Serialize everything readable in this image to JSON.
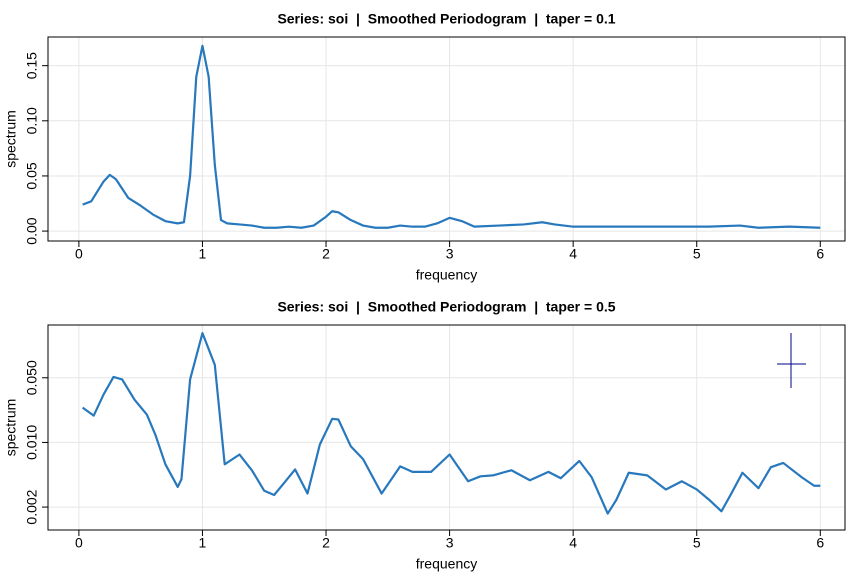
{
  "chart_data": [
    {
      "type": "line",
      "title": "Series: soi  |  Smoothed Periodogram  |  taper = 0.1",
      "x_label": "frequency",
      "y_label": "spectrum",
      "log_y": false,
      "grid": true,
      "color": "#2878bd",
      "xlim": [
        -0.25,
        6.2
      ],
      "ylim": [
        -0.009,
        0.176
      ],
      "xticks": [
        0,
        1,
        2,
        3,
        4,
        5,
        6
      ],
      "yticks": [
        {
          "value": 0,
          "label": "0.00"
        },
        {
          "value": 0.05,
          "label": "0.05"
        },
        {
          "value": 0.1,
          "label": "0.10"
        },
        {
          "value": 0.15,
          "label": "0.15"
        }
      ],
      "x": [
        0.03,
        0.1,
        0.2,
        0.25,
        0.3,
        0.4,
        0.5,
        0.6,
        0.7,
        0.8,
        0.85,
        0.9,
        0.95,
        1.0,
        1.05,
        1.1,
        1.15,
        1.2,
        1.3,
        1.4,
        1.5,
        1.6,
        1.7,
        1.8,
        1.9,
        2.0,
        2.05,
        2.1,
        2.2,
        2.3,
        2.4,
        2.5,
        2.6,
        2.7,
        2.8,
        2.9,
        3.0,
        3.1,
        3.2,
        3.4,
        3.6,
        3.75,
        3.85,
        4.0,
        4.3,
        4.6,
        4.9,
        5.1,
        5.35,
        5.5,
        5.75,
        6.0
      ],
      "series": [
        {
          "values": [
            0.024,
            0.027,
            0.045,
            0.051,
            0.047,
            0.03,
            0.023,
            0.015,
            0.009,
            0.007,
            0.008,
            0.05,
            0.14,
            0.168,
            0.14,
            0.06,
            0.01,
            0.007,
            0.006,
            0.005,
            0.003,
            0.003,
            0.004,
            0.003,
            0.005,
            0.013,
            0.018,
            0.017,
            0.01,
            0.005,
            0.003,
            0.003,
            0.005,
            0.004,
            0.004,
            0.007,
            0.012,
            0.009,
            0.004,
            0.005,
            0.006,
            0.008,
            0.006,
            0.004,
            0.004,
            0.004,
            0.004,
            0.004,
            0.005,
            0.003,
            0.004,
            0.003
          ]
        }
      ]
    },
    {
      "type": "line",
      "title": "Series: soi  |  Smoothed Periodogram  |  taper = 0.5",
      "x_label": "frequency",
      "y_label": "spectrum",
      "log_y": true,
      "grid": true,
      "color": "#2878bd",
      "xlim": [
        -0.25,
        6.2
      ],
      "ylim": [
        0.00113,
        0.186
      ],
      "xticks": [
        0,
        1,
        2,
        3,
        4,
        5,
        6
      ],
      "yticks": [
        {
          "value": 0.002,
          "label": "0.002"
        },
        {
          "value": 0.01,
          "label": "0.010"
        },
        {
          "value": 0.05,
          "label": "0.050"
        }
      ],
      "x": [
        0.03,
        0.12,
        0.2,
        0.28,
        0.35,
        0.45,
        0.55,
        0.62,
        0.7,
        0.8,
        0.83,
        0.9,
        1.0,
        1.1,
        1.18,
        1.3,
        1.4,
        1.5,
        1.58,
        1.65,
        1.75,
        1.85,
        1.95,
        2.05,
        2.1,
        2.2,
        2.3,
        2.45,
        2.6,
        2.7,
        2.85,
        3.0,
        3.15,
        3.25,
        3.35,
        3.5,
        3.65,
        3.8,
        3.9,
        4.05,
        4.15,
        4.28,
        4.35,
        4.45,
        4.6,
        4.75,
        4.88,
        5.0,
        5.1,
        5.2,
        5.28,
        5.37,
        5.5,
        5.6,
        5.7,
        5.85,
        5.95,
        6.0
      ],
      "series": [
        {
          "values": [
            0.0238,
            0.0195,
            0.033,
            0.051,
            0.048,
            0.029,
            0.02,
            0.012,
            0.0058,
            0.0033,
            0.004,
            0.048,
            0.152,
            0.069,
            0.0058,
            0.0074,
            0.005,
            0.003,
            0.0027,
            0.0035,
            0.0051,
            0.0028,
            0.0095,
            0.018,
            0.0177,
            0.0091,
            0.0066,
            0.0028,
            0.0055,
            0.0048,
            0.0048,
            0.0074,
            0.0038,
            0.0043,
            0.0044,
            0.005,
            0.0039,
            0.0048,
            0.0041,
            0.0063,
            0.0042,
            0.0017,
            0.0024,
            0.0047,
            0.0044,
            0.0031,
            0.0038,
            0.0031,
            0.0024,
            0.0018,
            0.0028,
            0.0047,
            0.0032,
            0.0054,
            0.006,
            0.0042,
            0.0034,
            0.0034
          ]
        }
      ]
    }
  ]
}
